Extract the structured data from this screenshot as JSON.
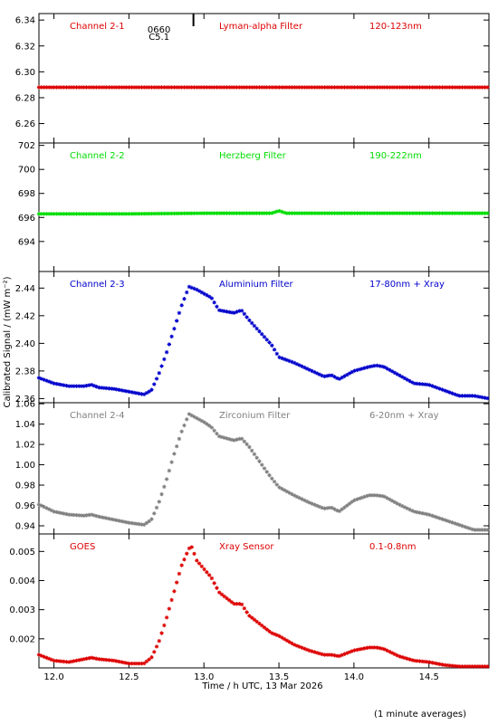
{
  "chart_data": {
    "type": "scatter",
    "marker": "asterisk",
    "xlabel": "Time / h UTC, 13 Mar 2026",
    "ylabel": "Calibrated Signal / (mW m⁻²)",
    "footnote": "(1 minute averages)",
    "xlim": [
      11.9,
      14.9
    ],
    "xticks": [
      "12.0",
      "12.5",
      "13.0",
      "13.5",
      "14.0",
      "14.5"
    ],
    "flare_marker": {
      "x": 12.93,
      "labels": [
        "0660",
        "C5.1"
      ]
    },
    "panels": [
      {
        "name": "Channel 2-1",
        "filter": "Lyman-alpha Filter",
        "band": "120-123nm",
        "color": "#dd0000",
        "ylim": [
          6.245,
          6.345
        ],
        "yticks": [
          "6.26",
          "6.28",
          "6.30",
          "6.32",
          "6.34"
        ],
        "x": [
          11.9,
          12.5,
          13.0,
          13.5,
          14.0,
          14.5,
          14.9
        ],
        "y": [
          6.288,
          6.288,
          6.288,
          6.288,
          6.288,
          6.288,
          6.288
        ]
      },
      {
        "name": "Channel 2-2",
        "filter": "Herzberg Filter",
        "band": "190-222nm",
        "color": "#00dd00",
        "ylim": [
          691.5,
          702.2
        ],
        "yticks": [
          "694",
          "696",
          "698",
          "700",
          "702"
        ],
        "x": [
          11.9,
          12.5,
          13.0,
          13.45,
          13.5,
          13.55,
          14.0,
          14.5,
          14.9
        ],
        "y": [
          696.3,
          696.3,
          696.35,
          696.35,
          696.55,
          696.35,
          696.35,
          696.35,
          696.35
        ]
      },
      {
        "name": "Channel 2-3",
        "filter": "Aluminium Filter",
        "band": "17-80nm + Xray",
        "color": "#0000cc",
        "ylim": [
          2.357,
          2.452
        ],
        "yticks": [
          "2.36",
          "2.38",
          "2.40",
          "2.42",
          "2.44"
        ],
        "x": [
          11.9,
          12.0,
          12.1,
          12.2,
          12.25,
          12.3,
          12.4,
          12.5,
          12.6,
          12.65,
          12.7,
          12.75,
          12.8,
          12.85,
          12.9,
          12.95,
          13.0,
          13.05,
          13.1,
          13.2,
          13.25,
          13.3,
          13.4,
          13.45,
          13.5,
          13.6,
          13.7,
          13.8,
          13.85,
          13.9,
          14.0,
          14.1,
          14.15,
          14.2,
          14.3,
          14.4,
          14.5,
          14.6,
          14.7,
          14.8,
          14.9
        ],
        "y": [
          2.375,
          2.371,
          2.369,
          2.369,
          2.37,
          2.368,
          2.367,
          2.365,
          2.363,
          2.366,
          2.378,
          2.393,
          2.41,
          2.427,
          2.441,
          2.439,
          2.436,
          2.433,
          2.424,
          2.422,
          2.424,
          2.417,
          2.405,
          2.399,
          2.39,
          2.386,
          2.381,
          2.376,
          2.377,
          2.374,
          2.38,
          2.383,
          2.384,
          2.383,
          2.377,
          2.371,
          2.37,
          2.366,
          2.362,
          2.362,
          2.36
        ]
      },
      {
        "name": "Channel 2-4",
        "filter": "Zirconium Filter",
        "band": "6-20nm + Xray",
        "color": "#808080",
        "ylim": [
          0.932,
          1.061
        ],
        "yticks": [
          "0.94",
          "0.96",
          "0.98",
          "1.00",
          "1.02",
          "1.04",
          "1.06"
        ],
        "x": [
          11.9,
          12.0,
          12.1,
          12.2,
          12.25,
          12.3,
          12.4,
          12.5,
          12.6,
          12.65,
          12.7,
          12.75,
          12.8,
          12.85,
          12.9,
          12.95,
          13.0,
          13.05,
          13.1,
          13.2,
          13.25,
          13.3,
          13.4,
          13.45,
          13.5,
          13.6,
          13.7,
          13.8,
          13.85,
          13.9,
          14.0,
          14.1,
          14.15,
          14.2,
          14.3,
          14.4,
          14.5,
          14.6,
          14.7,
          14.8,
          14.9
        ],
        "y": [
          0.961,
          0.954,
          0.951,
          0.95,
          0.951,
          0.949,
          0.946,
          0.943,
          0.941,
          0.946,
          0.963,
          0.985,
          1.01,
          1.032,
          1.05,
          1.046,
          1.042,
          1.037,
          1.028,
          1.024,
          1.026,
          1.018,
          0.997,
          0.987,
          0.978,
          0.97,
          0.963,
          0.957,
          0.958,
          0.954,
          0.965,
          0.97,
          0.97,
          0.969,
          0.961,
          0.954,
          0.951,
          0.946,
          0.941,
          0.936,
          0.936
        ]
      },
      {
        "name": "GOES",
        "filter": "Xray Sensor",
        "band": "0.1-0.8nm",
        "color": "#dd0000",
        "ylim": [
          0.001,
          0.0056
        ],
        "yticks": [
          "0.002",
          "0.003",
          "0.004",
          "0.005"
        ],
        "x": [
          11.9,
          12.0,
          12.1,
          12.2,
          12.25,
          12.3,
          12.4,
          12.5,
          12.6,
          12.65,
          12.7,
          12.75,
          12.8,
          12.85,
          12.9,
          12.92,
          12.95,
          13.0,
          13.05,
          13.1,
          13.2,
          13.25,
          13.3,
          13.4,
          13.45,
          13.5,
          13.6,
          13.7,
          13.8,
          13.85,
          13.9,
          14.0,
          14.1,
          14.15,
          14.2,
          14.3,
          14.4,
          14.5,
          14.6,
          14.7,
          14.8,
          14.9
        ],
        "y": [
          0.00145,
          0.00125,
          0.0012,
          0.0013,
          0.00135,
          0.0013,
          0.00125,
          0.00115,
          0.00115,
          0.00135,
          0.0019,
          0.0027,
          0.0036,
          0.0045,
          0.0051,
          0.00515,
          0.0047,
          0.0044,
          0.0041,
          0.0036,
          0.0032,
          0.0032,
          0.0028,
          0.0024,
          0.0022,
          0.0021,
          0.0018,
          0.0016,
          0.00145,
          0.00145,
          0.0014,
          0.0016,
          0.0017,
          0.0017,
          0.00165,
          0.0014,
          0.00125,
          0.0012,
          0.0011,
          0.00105,
          0.00105,
          0.00105
        ]
      }
    ]
  }
}
